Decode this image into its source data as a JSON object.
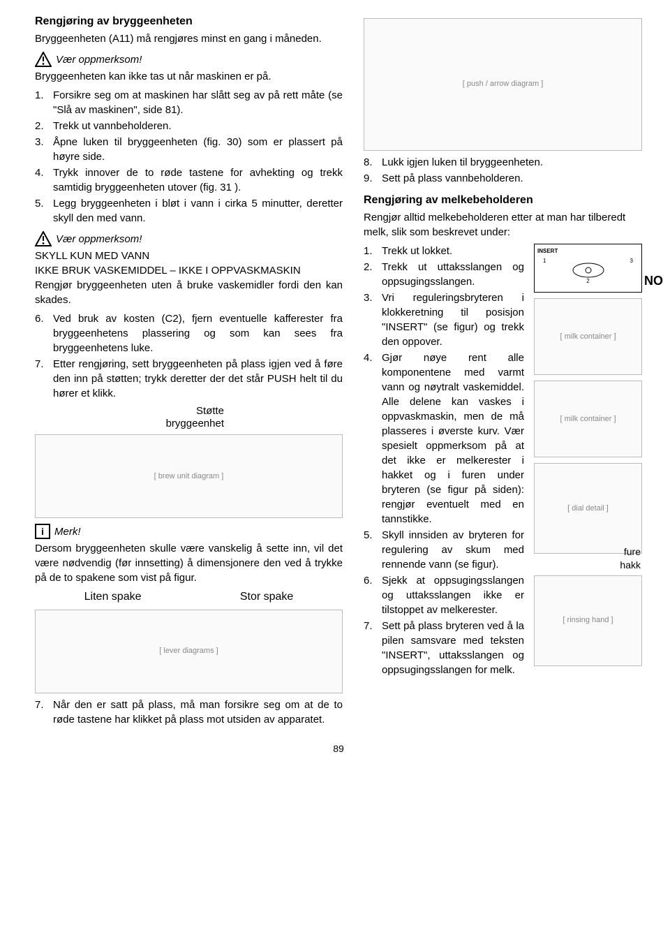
{
  "lang_tag": "NO",
  "page_number": "89",
  "left": {
    "heading1": "Rengjøring av bryggeenheten",
    "intro": "Bryggeenheten (A11) må rengjøres minst en gang i måneden.",
    "warn1_label": "Vær oppmerksom!",
    "warn1_text": "Bryggeenheten kan ikke tas ut når maskinen er på.",
    "list1": [
      "Forsikre seg om at maskinen har slått seg av på rett måte (se \"Slå av maskinen\", side 81).",
      "Trekk ut vannbeholderen.",
      "Åpne luken til bryggeenheten (fig. 30) som er plassert på høyre side.",
      "Trykk innover de to røde tastene for avhekting og trekk samtidig bryggeenheten utover (fig. 31 ).",
      "Legg bryggeenheten i bløt i vann i cirka 5 minutter, deretter skyll den med vann."
    ],
    "warn2_label": "Vær oppmerksom!",
    "warn2_line1": "SKYLL KUN MED VANN",
    "warn2_line2": "IKKE BRUK VASKEMIDDEL – IKKE I OPPVASKMASKIN",
    "warn2_text": "Rengjør bryggeenheten uten å bruke vaskemidler fordi den kan skades.",
    "list2": [
      "Ved bruk av kosten (C2), fjern eventuelle kafferester fra bryggeenhetens plassering og som kan sees fra bryggeenhetens luke.",
      "Etter rengjøring, sett bryggeenheten på plass igjen ved å føre den inn på støtten; trykk deretter der det står PUSH helt til du hører et klikk."
    ],
    "stotte_label1": "Støtte",
    "stotte_label2": "bryggeenhet",
    "info_label": "Merk!",
    "info_text": "Dersom bryggeenheten skulle være vanskelig å sette inn, vil det være nødvendig (før innsetting) å dimensjonere den ved å trykke på de to spakene som vist på figur.",
    "spake_small": "Liten spake",
    "spake_large": "Stor spake",
    "list3": [
      "Når den er satt på plass, må man forsikre seg om at de to røde tastene har klikket på plass mot utsiden av apparatet."
    ]
  },
  "right": {
    "list_cont": [
      "Lukk igjen luken til bryggeenheten.",
      "Sett på plass vannbeholderen."
    ],
    "heading2": "Rengjøring av melkebeholderen",
    "intro2": "Rengjør alltid melkebeholderen etter at man har tilberedt melk, slik som beskrevet under:",
    "list4": [
      "Trekk ut lokket.",
      "Trekk ut uttaksslangen og oppsugingsslangen.",
      "Vri reguleringsbryteren i klokkeretning til posisjon \"INSERT\" (se figur) og trekk den oppover.",
      "Gjør nøye rent alle komponentene med varmt vann og nøytralt vaskemiddel. Alle delene kan vaskes i oppvaskmaskin, men de må plasseres i øverste kurv. Vær spesielt oppmerksom på at det ikke er melkerester i hakket og i furen under bryteren (se figur på siden): rengjør eventuelt med en tannstikke.",
      "Skyll innsiden av bryteren for regulering av skum med rennende vann (se figur).",
      "Sjekk at oppsugingsslangen og uttaksslangen ikke er tilstoppet av melkerester.",
      "Sett på plass bryteren ved å la pilen samsvare med teksten \"INSERT\", uttaksslangen og oppsugingsslangen for melk."
    ],
    "insert_label": "INSERT",
    "fure_label": "fure",
    "hakk_label": "hakk"
  }
}
